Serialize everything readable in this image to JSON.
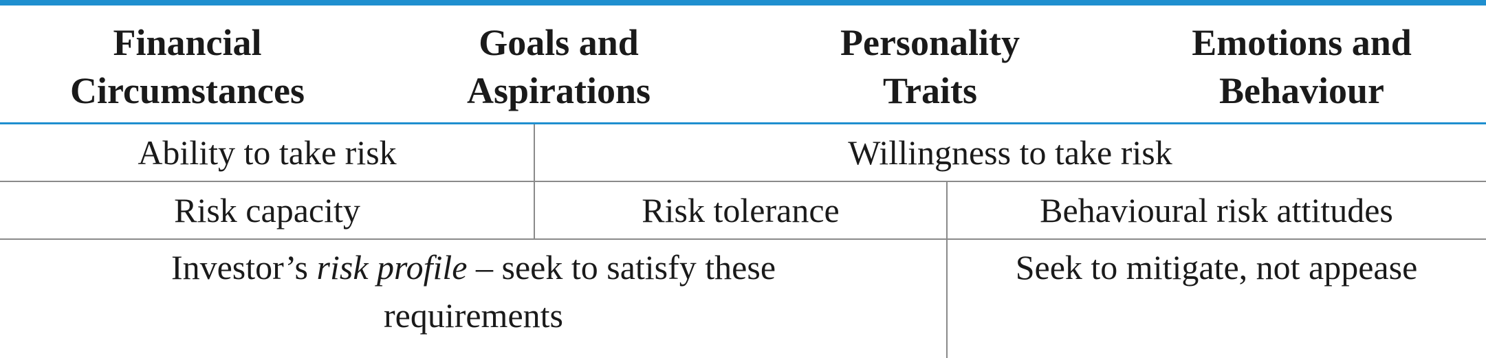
{
  "headers": [
    {
      "line1": "Financial",
      "line2": "Circumstances"
    },
    {
      "line1": "Goals and",
      "line2": "Aspirations"
    },
    {
      "line1": "Personality",
      "line2": "Traits"
    },
    {
      "line1": "Emotions and",
      "line2": "Behaviour"
    }
  ],
  "row1": {
    "ability": "Ability to take risk",
    "willingness": "Willingness to take risk"
  },
  "row2": {
    "capacity": "Risk capacity",
    "tolerance": "Risk tolerance",
    "behavioural": "Behavioural risk attitudes"
  },
  "row3": {
    "profile_prefix": "Investor’s ",
    "profile_italic": "risk profile",
    "profile_suffix": " – seek to satisfy these",
    "profile_line2": "requirements",
    "mitigate": "Seek to mitigate, not appease"
  },
  "colors": {
    "accent": "#1f8fcf",
    "rule": "#8a8a8a"
  }
}
